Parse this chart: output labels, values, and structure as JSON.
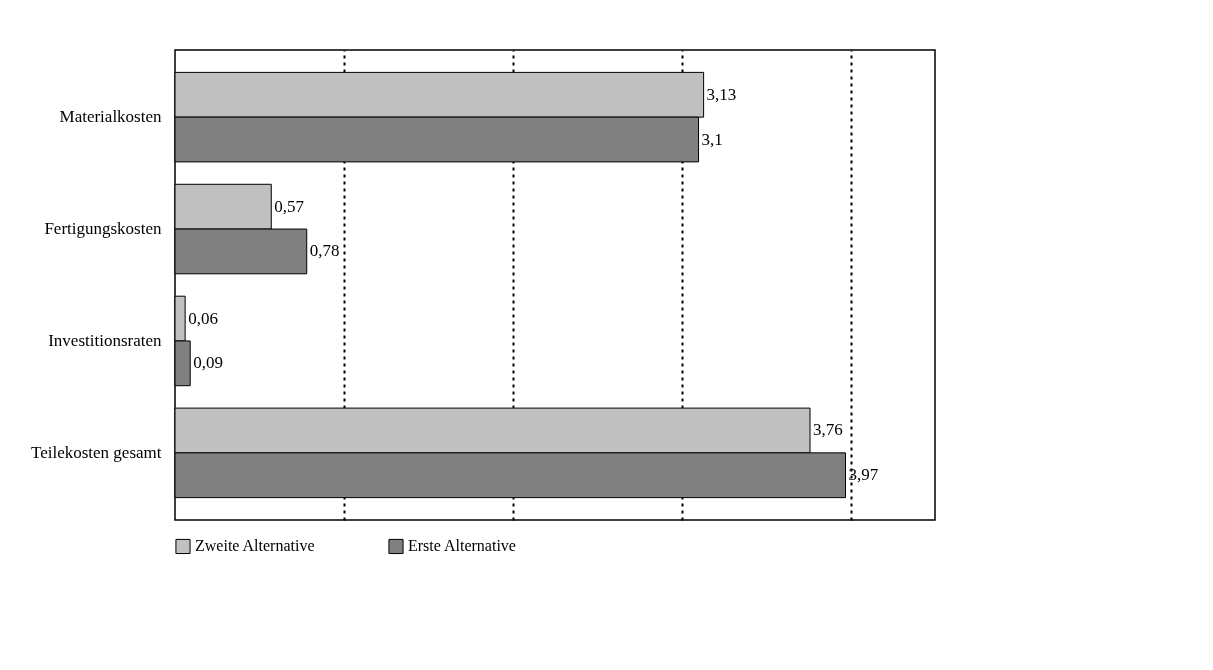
{
  "chart_data": {
    "type": "bar",
    "orientation": "horizontal",
    "categories": [
      "Materialkosten",
      "Fertigungskosten",
      "Investitionsraten",
      "Teilekosten gesamt"
    ],
    "series": [
      {
        "name": "Zweite Alternative",
        "color": "#c0c0c0",
        "values": [
          3.13,
          0.57,
          0.06,
          3.76
        ],
        "value_labels": [
          "3,13",
          "0,57",
          "0,06",
          "3,76"
        ]
      },
      {
        "name": "Erste Alternative",
        "color": "#808080",
        "values": [
          3.1,
          0.78,
          0.09,
          3.97
        ],
        "value_labels": [
          "3,1",
          "0,78",
          "0,09",
          "3,97"
        ]
      }
    ],
    "xlim": [
      0,
      4.5
    ],
    "xticks": [
      {
        "value": 1,
        "label": null
      },
      {
        "value": 2,
        "label": null
      },
      {
        "value": 3,
        "label": null
      },
      {
        "value": 4,
        "label": null
      }
    ],
    "grid": "x",
    "tick_labels": "y",
    "legend": "bottom"
  }
}
